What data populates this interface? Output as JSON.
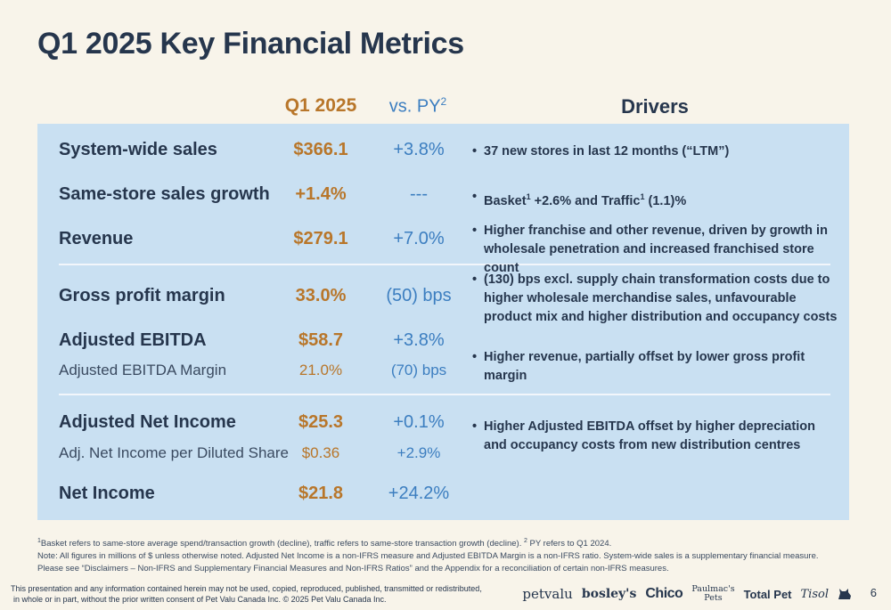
{
  "title": "Q1 2025 Key Financial Metrics",
  "columns": {
    "q1": "Q1 2025",
    "py": "vs. PY",
    "py_sup": "2",
    "drivers": "Drivers"
  },
  "rows": [
    {
      "label": "System-wide sales",
      "value": "$366.1",
      "vs_py": "+3.8%"
    },
    {
      "label": "Same-store sales growth",
      "value": "+1.4%",
      "vs_py": "---"
    },
    {
      "label": "Revenue",
      "value": "$279.1",
      "vs_py": "+7.0%"
    },
    {
      "label": "Gross profit margin",
      "value": "33.0%",
      "vs_py": "(50) bps"
    },
    {
      "label": "Adjusted EBITDA",
      "value": "$58.7",
      "vs_py": "+3.8%"
    },
    {
      "label": "Adjusted EBITDA Margin",
      "value": "21.0%",
      "vs_py": "(70) bps"
    },
    {
      "label": "Adjusted Net Income",
      "value": "$25.3",
      "vs_py": "+0.1%"
    },
    {
      "label": "Adj. Net Income per Diluted Share",
      "value": "$0.36",
      "vs_py": "+2.9%"
    },
    {
      "label": "Net Income",
      "value": "$21.8",
      "vs_py": "+24.2%"
    }
  ],
  "drivers": {
    "d0": "37 new stores in last 12 months (“LTM”)",
    "d1_a": "Basket",
    "d1_sup1": "1",
    "d1_b": " +2.6% and Traffic",
    "d1_sup2": "1",
    "d1_c": " (1.1)%",
    "d2": "Higher franchise and other revenue, driven by growth in wholesale penetration and increased franchised store count",
    "d3": "(130) bps excl. supply chain transformation costs due to higher wholesale merchandise sales, unfavourable product mix and higher distribution and occupancy costs",
    "d4": "Higher revenue, partially offset by lower gross profit margin",
    "d5": "Higher Adjusted EBITDA offset by higher depreciation and occupancy costs from new distribution centres"
  },
  "footnotes": {
    "f1_sup1": "1",
    "f1_a": "Basket refers to same-store average spend/transaction growth (decline), traffic refers to same-store transaction growth (decline). ",
    "f1_sup2": "2",
    "f1_b": " PY refers to Q1 2024.",
    "f2": "Note: All figures in millions of $ unless otherwise noted. Adjusted Net Income is a non-IFRS measure and Adjusted EBITDA Margin is a non-IFRS ratio. System-wide sales is a supplementary financial measure.",
    "f3": "Please see “Disclaimers – Non-IFRS and Supplementary Financial Measures and Non-IFRS Ratios” and the Appendix for a reconciliation of certain non-IFRS measures."
  },
  "disclaimer": {
    "line1": "This presentation and any information contained herein may not be used, copied, reproduced, published, transmitted or redistributed,",
    "line2": "in whole or in part, without the prior written consent of Pet Valu Canada Inc. © 2025 Pet Valu Canada Inc."
  },
  "logos": {
    "petvalu": "petvalu",
    "bosleys": "bosley's",
    "chico": "Chico",
    "paulmacs_1": "Paulmac's",
    "paulmacs_2": "Pets",
    "totalpet": "Total Pet",
    "tisol": "Tisol"
  },
  "page_number": "6"
}
